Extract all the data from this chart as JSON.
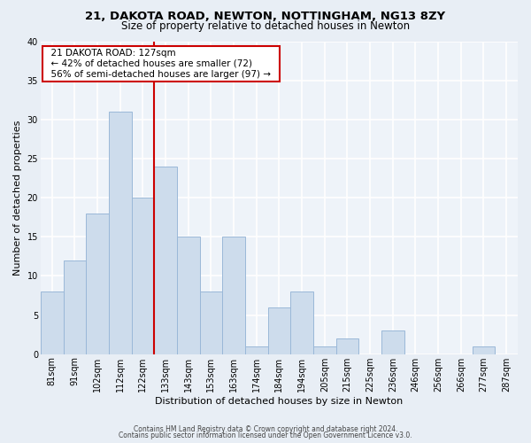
{
  "title": "21, DAKOTA ROAD, NEWTON, NOTTINGHAM, NG13 8ZY",
  "subtitle": "Size of property relative to detached houses in Newton",
  "xlabel": "Distribution of detached houses by size in Newton",
  "ylabel": "Number of detached properties",
  "bar_labels": [
    "81sqm",
    "91sqm",
    "102sqm",
    "112sqm",
    "122sqm",
    "133sqm",
    "143sqm",
    "153sqm",
    "163sqm",
    "174sqm",
    "184sqm",
    "194sqm",
    "205sqm",
    "215sqm",
    "225sqm",
    "236sqm",
    "246sqm",
    "256sqm",
    "266sqm",
    "277sqm",
    "287sqm"
  ],
  "bar_values": [
    8,
    12,
    18,
    31,
    20,
    24,
    15,
    8,
    15,
    1,
    6,
    8,
    1,
    2,
    0,
    3,
    0,
    0,
    0,
    1,
    0
  ],
  "bar_color": "#cddcec",
  "bar_edgecolor": "#9ab8d8",
  "vline_x_index": 4.5,
  "vline_color": "#cc0000",
  "annotation_title": "21 DAKOTA ROAD: 127sqm",
  "annotation_line1": "← 42% of detached houses are smaller (72)",
  "annotation_line2": "56% of semi-detached houses are larger (97) →",
  "annotation_box_edgecolor": "#cc0000",
  "ylim": [
    0,
    40
  ],
  "yticks": [
    0,
    5,
    10,
    15,
    20,
    25,
    30,
    35,
    40
  ],
  "footer_line1": "Contains HM Land Registry data © Crown copyright and database right 2024.",
  "footer_line2": "Contains public sector information licensed under the Open Government Licence v3.0.",
  "bg_color": "#e8eef5",
  "plot_bg_color": "#eef3f9",
  "grid_color": "#ffffff",
  "title_fontsize": 9.5,
  "subtitle_fontsize": 8.5,
  "axis_label_fontsize": 8,
  "tick_fontsize": 7,
  "annotation_fontsize": 7.5
}
